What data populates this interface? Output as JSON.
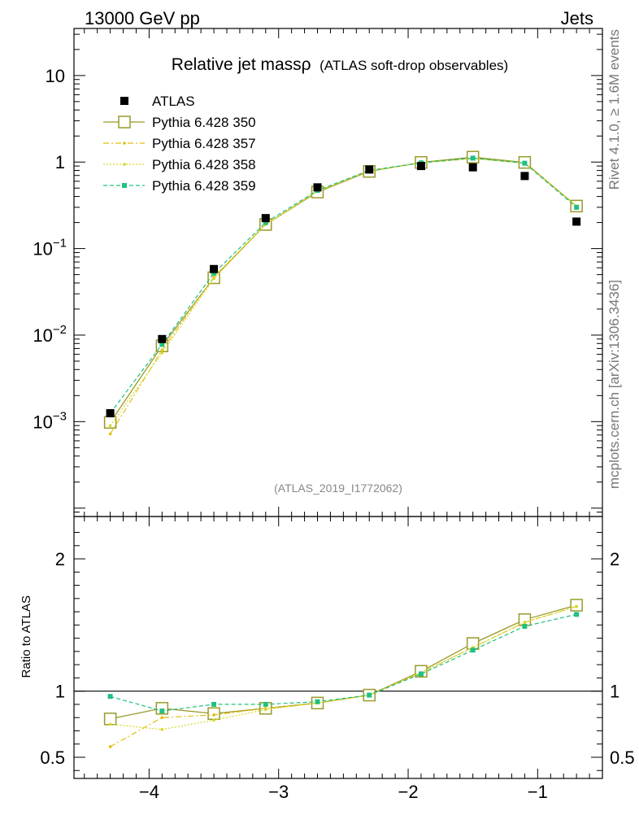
{
  "header": {
    "energy": "13000 GeV pp",
    "category": "Jets",
    "side_rivet": "Rivet 4.1.0, ≥ 1.6M events",
    "side_site": "mcplots.cern.ch [arXiv:1306.3436]",
    "analysis_id": "(ATLAS_2019_I1772062)"
  },
  "chart_data": [
    {
      "type": "scatter",
      "title": "Relative jet massρ",
      "subtitle": "(ATLAS soft-drop observables)",
      "xlabel": "",
      "ylabel": "",
      "yscale": "log",
      "xlim": [
        -4.58,
        -0.5
      ],
      "ylim": [
        8e-05,
        35
      ],
      "x_ticks": [
        -4,
        -3,
        -2,
        -1
      ],
      "x_tick_labels": [
        "−4",
        "−3",
        "−2",
        "−1"
      ],
      "y_ticks": [
        0.001,
        0.01,
        0.1,
        1,
        10
      ],
      "y_tick_labels": [
        {
          "base": "10",
          "exp": "−3"
        },
        {
          "base": "10",
          "exp": "−2"
        },
        {
          "base": "10",
          "exp": "−1"
        },
        {
          "base": "1",
          "exp": ""
        },
        {
          "base": "10",
          "exp": ""
        }
      ],
      "x": [
        -4.3,
        -3.9,
        -3.5,
        -3.1,
        -2.7,
        -2.3,
        -1.9,
        -1.5,
        -1.1,
        -0.7
      ],
      "legend": [
        "ATLAS",
        "Pythia 6.428 350",
        "Pythia 6.428 357",
        "Pythia 6.428 358",
        "Pythia 6.428 359"
      ],
      "series": [
        {
          "name": "ATLAS",
          "color": "#000000",
          "style": "data",
          "values": [
            0.00125,
            0.009,
            0.058,
            0.225,
            0.51,
            0.82,
            0.9,
            0.87,
            0.69,
            0.205
          ]
        },
        {
          "name": "Pythia 6.428 350",
          "color": "#9a9a2a",
          "style": "solid-open-square",
          "values": [
            0.00098,
            0.0075,
            0.046,
            0.19,
            0.45,
            0.78,
            0.99,
            1.14,
            0.99,
            0.31
          ]
        },
        {
          "name": "Pythia 6.428 357",
          "color": "#e2be10",
          "style": "dashdot",
          "values": [
            0.00072,
            0.0067,
            0.047,
            0.19,
            0.46,
            0.79,
            0.98,
            1.1,
            0.97,
            0.31
          ]
        },
        {
          "name": "Pythia 6.428 358",
          "color": "#d6d82a",
          "style": "dotted",
          "values": [
            0.0009,
            0.0062,
            0.045,
            0.19,
            0.46,
            0.79,
            0.98,
            1.1,
            0.97,
            0.31
          ]
        },
        {
          "name": "Pythia 6.428 359",
          "color": "#20c080",
          "style": "dashed",
          "values": [
            0.00125,
            0.0078,
            0.052,
            0.2,
            0.47,
            0.8,
            0.98,
            1.11,
            0.97,
            0.3
          ]
        }
      ]
    },
    {
      "type": "line",
      "title": "",
      "xlabel": "",
      "ylabel": "Ratio to ATLAS",
      "xlim": [
        -4.58,
        -0.5
      ],
      "ylim": [
        0.34,
        2.32
      ],
      "x_ticks": [
        -4,
        -3,
        -2,
        -1
      ],
      "x_tick_labels": [
        "−4",
        "−3",
        "−2",
        "−1"
      ],
      "y_ticks": [
        0.5,
        1,
        2
      ],
      "y_tick_labels": [
        "0.5",
        "1",
        "2"
      ],
      "reference_line": 1,
      "x": [
        -4.3,
        -3.9,
        -3.5,
        -3.1,
        -2.7,
        -2.3,
        -1.9,
        -1.5,
        -1.1,
        -0.7
      ],
      "series": [
        {
          "name": "Pythia 6.428 350",
          "color": "#9a9a2a",
          "style": "solid-open-square",
          "values": [
            0.79,
            0.87,
            0.83,
            0.87,
            0.91,
            0.97,
            1.15,
            1.36,
            1.54,
            1.65
          ]
        },
        {
          "name": "Pythia 6.428 357",
          "color": "#e2be10",
          "style": "dashdot",
          "values": [
            0.58,
            0.8,
            0.82,
            0.87,
            0.91,
            0.97,
            1.14,
            1.33,
            1.52,
            1.64
          ]
        },
        {
          "name": "Pythia 6.428 358",
          "color": "#d6d82a",
          "style": "dotted",
          "values": [
            0.75,
            0.71,
            0.78,
            0.86,
            0.91,
            0.97,
            1.14,
            1.33,
            1.52,
            1.64
          ]
        },
        {
          "name": "Pythia 6.428 359",
          "color": "#20c080",
          "style": "dashed",
          "values": [
            0.96,
            0.85,
            0.9,
            0.9,
            0.92,
            0.97,
            1.13,
            1.31,
            1.49,
            1.58
          ]
        }
      ]
    }
  ]
}
